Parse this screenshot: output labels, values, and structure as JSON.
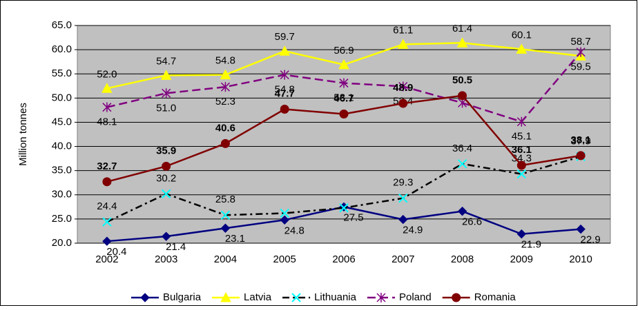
{
  "chart_data": {
    "type": "line",
    "y_label": "Million tonnes",
    "categories": [
      "2002",
      "2003",
      "2004",
      "2005",
      "2006",
      "2007",
      "2008",
      "2009",
      "2010"
    ],
    "series": [
      {
        "name": "Bulgaria",
        "color": "#000080",
        "marker": "diamond",
        "marker_color": "#000080",
        "line_style": "solid",
        "label_weight": "normal",
        "values": [
          20.4,
          21.4,
          23.1,
          24.8,
          27.5,
          24.9,
          26.6,
          21.9,
          22.9
        ],
        "value_labels": [
          "20.4",
          "21.4",
          "23.1",
          "24.8",
          "27.5",
          "24.9",
          "26.6",
          "21.9",
          "22.9"
        ]
      },
      {
        "name": "Latvia",
        "color": "#ffff00",
        "marker": "triangle",
        "marker_color": "#ffff00",
        "line_style": "solid",
        "label_weight": "normal",
        "values": [
          52.0,
          54.7,
          54.8,
          59.7,
          56.9,
          61.1,
          61.4,
          60.1,
          58.7
        ],
        "value_labels": [
          "52.0",
          "54.7",
          "54.8",
          "59.7",
          "56.9",
          "61.1",
          "61.4",
          "60.1",
          "58.7"
        ]
      },
      {
        "name": "Lithuania",
        "color": "#000000",
        "marker": "x",
        "marker_color": "#00ffff",
        "line_style": "dashdot",
        "label_weight": "normal",
        "values": [
          24.4,
          30.2,
          25.8,
          26.2,
          27.3,
          29.3,
          36.4,
          34.3,
          37.9
        ],
        "value_labels": [
          "24.4",
          "30.2",
          "25.8",
          null,
          null,
          "29.3",
          "36.4",
          "34.3",
          "37.9"
        ]
      },
      {
        "name": "Poland",
        "color": "#800080",
        "marker": "star",
        "marker_color": "#800080",
        "line_style": "dash",
        "label_weight": "normal",
        "values": [
          48.1,
          51.0,
          52.3,
          54.8,
          53.1,
          52.4,
          49.0,
          45.1,
          59.5
        ],
        "value_labels": [
          "48.1",
          "51.0",
          "52.3",
          "54.8",
          "53.1",
          "52.4",
          null,
          "45.1",
          "59.5"
        ]
      },
      {
        "name": "Romania",
        "color": "#800000",
        "marker": "circle",
        "marker_color": "#800000",
        "line_style": "solid",
        "label_weight": "bold",
        "values": [
          32.7,
          35.9,
          40.6,
          47.7,
          46.7,
          48.9,
          50.5,
          36.1,
          38.1
        ],
        "value_labels": [
          "32.7",
          "35.9",
          "40.6",
          "47.7",
          "46.7",
          "48.9",
          "50.5",
          "36.1",
          "38.1"
        ]
      }
    ],
    "ylim": [
      20,
      65
    ],
    "yticks": [
      {
        "value": 20,
        "label": "20.0"
      },
      {
        "value": 25,
        "label": "25.0"
      },
      {
        "value": 30,
        "label": "30.0"
      },
      {
        "value": 35,
        "label": "35.0"
      },
      {
        "value": 40,
        "label": "40.0"
      },
      {
        "value": 45,
        "label": "45.0"
      },
      {
        "value": 50,
        "label": "50.0"
      },
      {
        "value": 55,
        "label": "55.0"
      },
      {
        "value": 60,
        "label": "60.0"
      },
      {
        "value": 65,
        "label": "65.0"
      }
    ],
    "grid": true,
    "plot_background": "#c0c0c0",
    "legend": "bottom"
  }
}
